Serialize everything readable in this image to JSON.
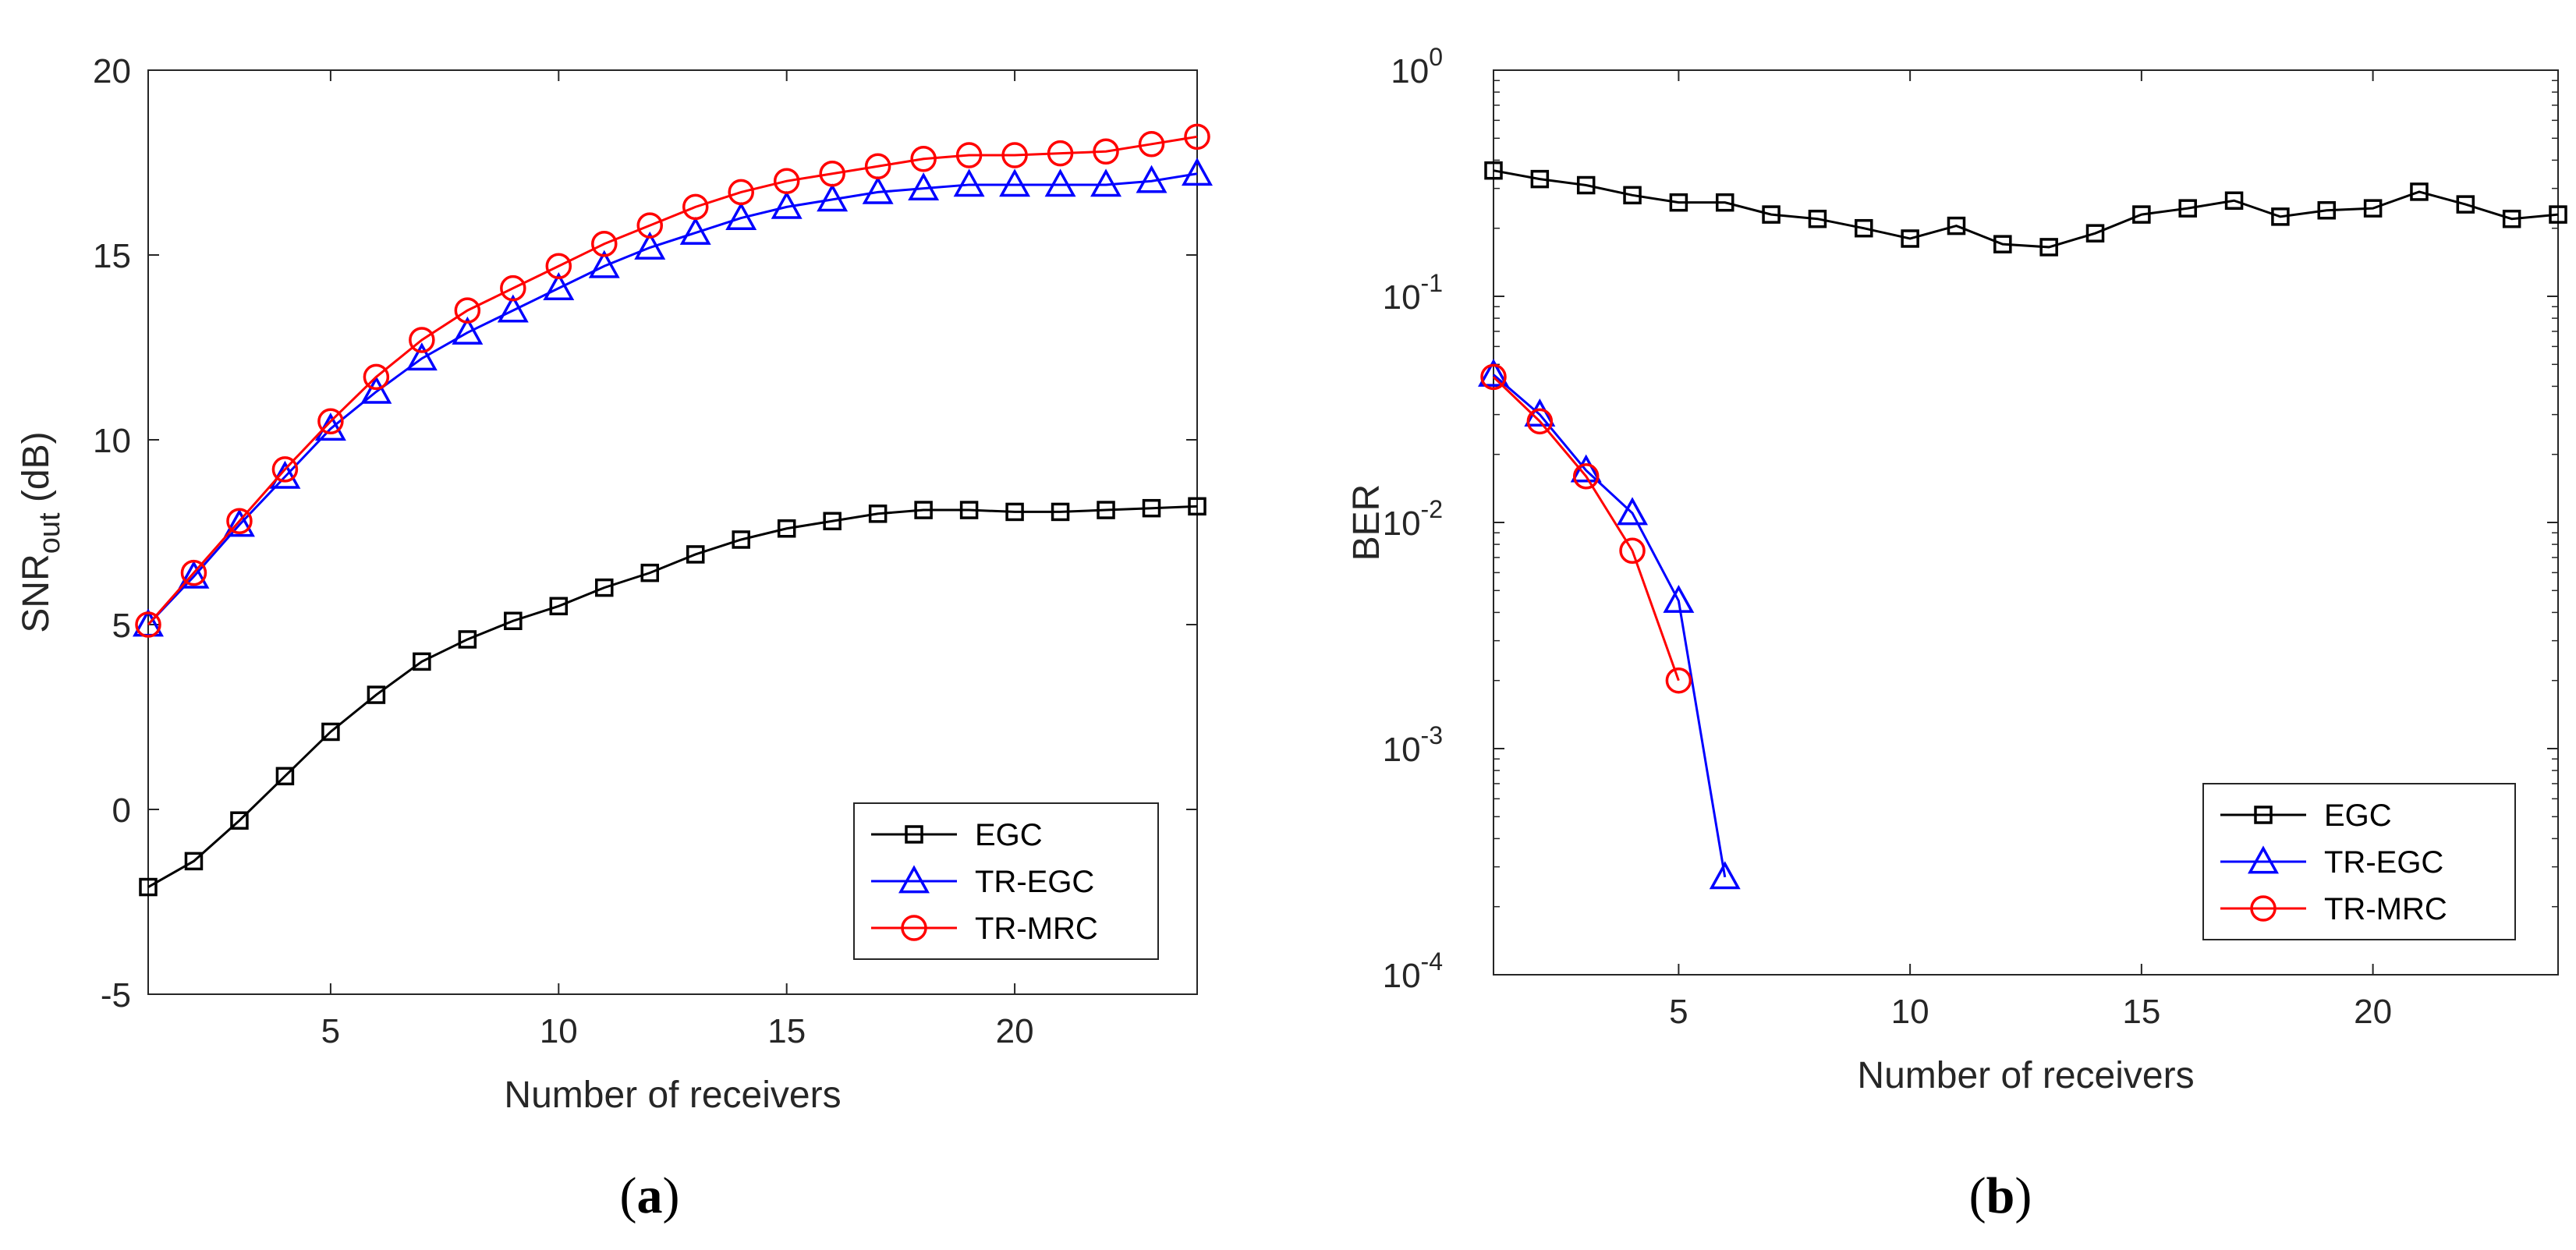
{
  "chart_data": [
    {
      "type": "line",
      "panel_label": "a",
      "xlabel": "Number of receivers",
      "ylabel": {
        "base": "SNR",
        "sub": "out",
        "suffix": " (dB)"
      },
      "xlim": [
        1,
        24
      ],
      "ylim": [
        -5,
        20
      ],
      "yscale": "linear",
      "xticks": [
        5,
        10,
        15,
        20
      ],
      "yticks": [
        -5,
        0,
        5,
        10,
        15,
        20
      ],
      "legend_position": "bottom-right",
      "series": [
        {
          "name": "EGC",
          "color": "#000000",
          "marker": "square",
          "x": [
            1,
            2,
            3,
            4,
            5,
            6,
            7,
            8,
            9,
            10,
            11,
            12,
            13,
            14,
            15,
            16,
            17,
            18,
            19,
            20,
            21,
            22,
            23,
            24
          ],
          "values": [
            -2.1,
            -1.4,
            -0.3,
            0.9,
            2.1,
            3.1,
            4.0,
            4.6,
            5.1,
            5.5,
            6.0,
            6.4,
            6.9,
            7.3,
            7.6,
            7.8,
            8.0,
            8.1,
            8.1,
            8.05,
            8.05,
            8.1,
            8.15,
            8.2
          ]
        },
        {
          "name": "TR-EGC",
          "color": "#0000ff",
          "marker": "triangle",
          "x": [
            1,
            2,
            3,
            4,
            5,
            6,
            7,
            8,
            9,
            10,
            11,
            12,
            13,
            14,
            15,
            16,
            17,
            18,
            19,
            20,
            21,
            22,
            23,
            24
          ],
          "values": [
            5.0,
            6.3,
            7.7,
            9.0,
            10.3,
            11.3,
            12.2,
            12.9,
            13.5,
            14.1,
            14.7,
            15.2,
            15.6,
            16.0,
            16.3,
            16.5,
            16.7,
            16.8,
            16.9,
            16.9,
            16.9,
            16.9,
            17.0,
            17.2
          ]
        },
        {
          "name": "TR-MRC",
          "color": "#ff0000",
          "marker": "circle",
          "x": [
            1,
            2,
            3,
            4,
            5,
            6,
            7,
            8,
            9,
            10,
            11,
            12,
            13,
            14,
            15,
            16,
            17,
            18,
            19,
            20,
            21,
            22,
            23,
            24
          ],
          "values": [
            5.0,
            6.4,
            7.8,
            9.2,
            10.5,
            11.7,
            12.7,
            13.5,
            14.1,
            14.7,
            15.3,
            15.8,
            16.3,
            16.7,
            17.0,
            17.2,
            17.4,
            17.6,
            17.7,
            17.7,
            17.75,
            17.8,
            18.0,
            18.2
          ]
        }
      ]
    },
    {
      "type": "line",
      "panel_label": "b",
      "xlabel": "Number of receivers",
      "ylabel": {
        "base": "BER",
        "sub": "",
        "suffix": ""
      },
      "xlim": [
        1,
        24
      ],
      "ylim": [
        0.0001,
        1
      ],
      "yscale": "log",
      "xticks": [
        5,
        10,
        15,
        20
      ],
      "yticks": [
        0.0001,
        0.001,
        0.01,
        0.1,
        1
      ],
      "ytick_labels": [
        {
          "base": "10",
          "exp": "-4"
        },
        {
          "base": "10",
          "exp": "-3"
        },
        {
          "base": "10",
          "exp": "-2"
        },
        {
          "base": "10",
          "exp": "-1"
        },
        {
          "base": "10",
          "exp": "0"
        }
      ],
      "legend_position": "bottom-right",
      "series": [
        {
          "name": "EGC",
          "color": "#000000",
          "marker": "square",
          "x": [
            1,
            2,
            3,
            4,
            5,
            6,
            7,
            8,
            9,
            10,
            11,
            12,
            13,
            14,
            15,
            16,
            17,
            18,
            19,
            20,
            21,
            22,
            23,
            24
          ],
          "values": [
            0.36,
            0.33,
            0.31,
            0.28,
            0.26,
            0.26,
            0.23,
            0.22,
            0.2,
            0.18,
            0.205,
            0.17,
            0.165,
            0.19,
            0.23,
            0.245,
            0.265,
            0.225,
            0.24,
            0.245,
            0.29,
            0.255,
            0.22,
            0.23
          ]
        },
        {
          "name": "TR-EGC",
          "color": "#0000ff",
          "marker": "triangle",
          "x": [
            1,
            2,
            3,
            4,
            5,
            6
          ],
          "values": [
            0.045,
            0.03,
            0.017,
            0.011,
            0.0045,
            0.00027
          ]
        },
        {
          "name": "TR-MRC",
          "color": "#ff0000",
          "marker": "circle",
          "x": [
            1,
            2,
            3,
            4,
            5
          ],
          "values": [
            0.044,
            0.028,
            0.016,
            0.0075,
            0.002
          ]
        }
      ]
    }
  ]
}
